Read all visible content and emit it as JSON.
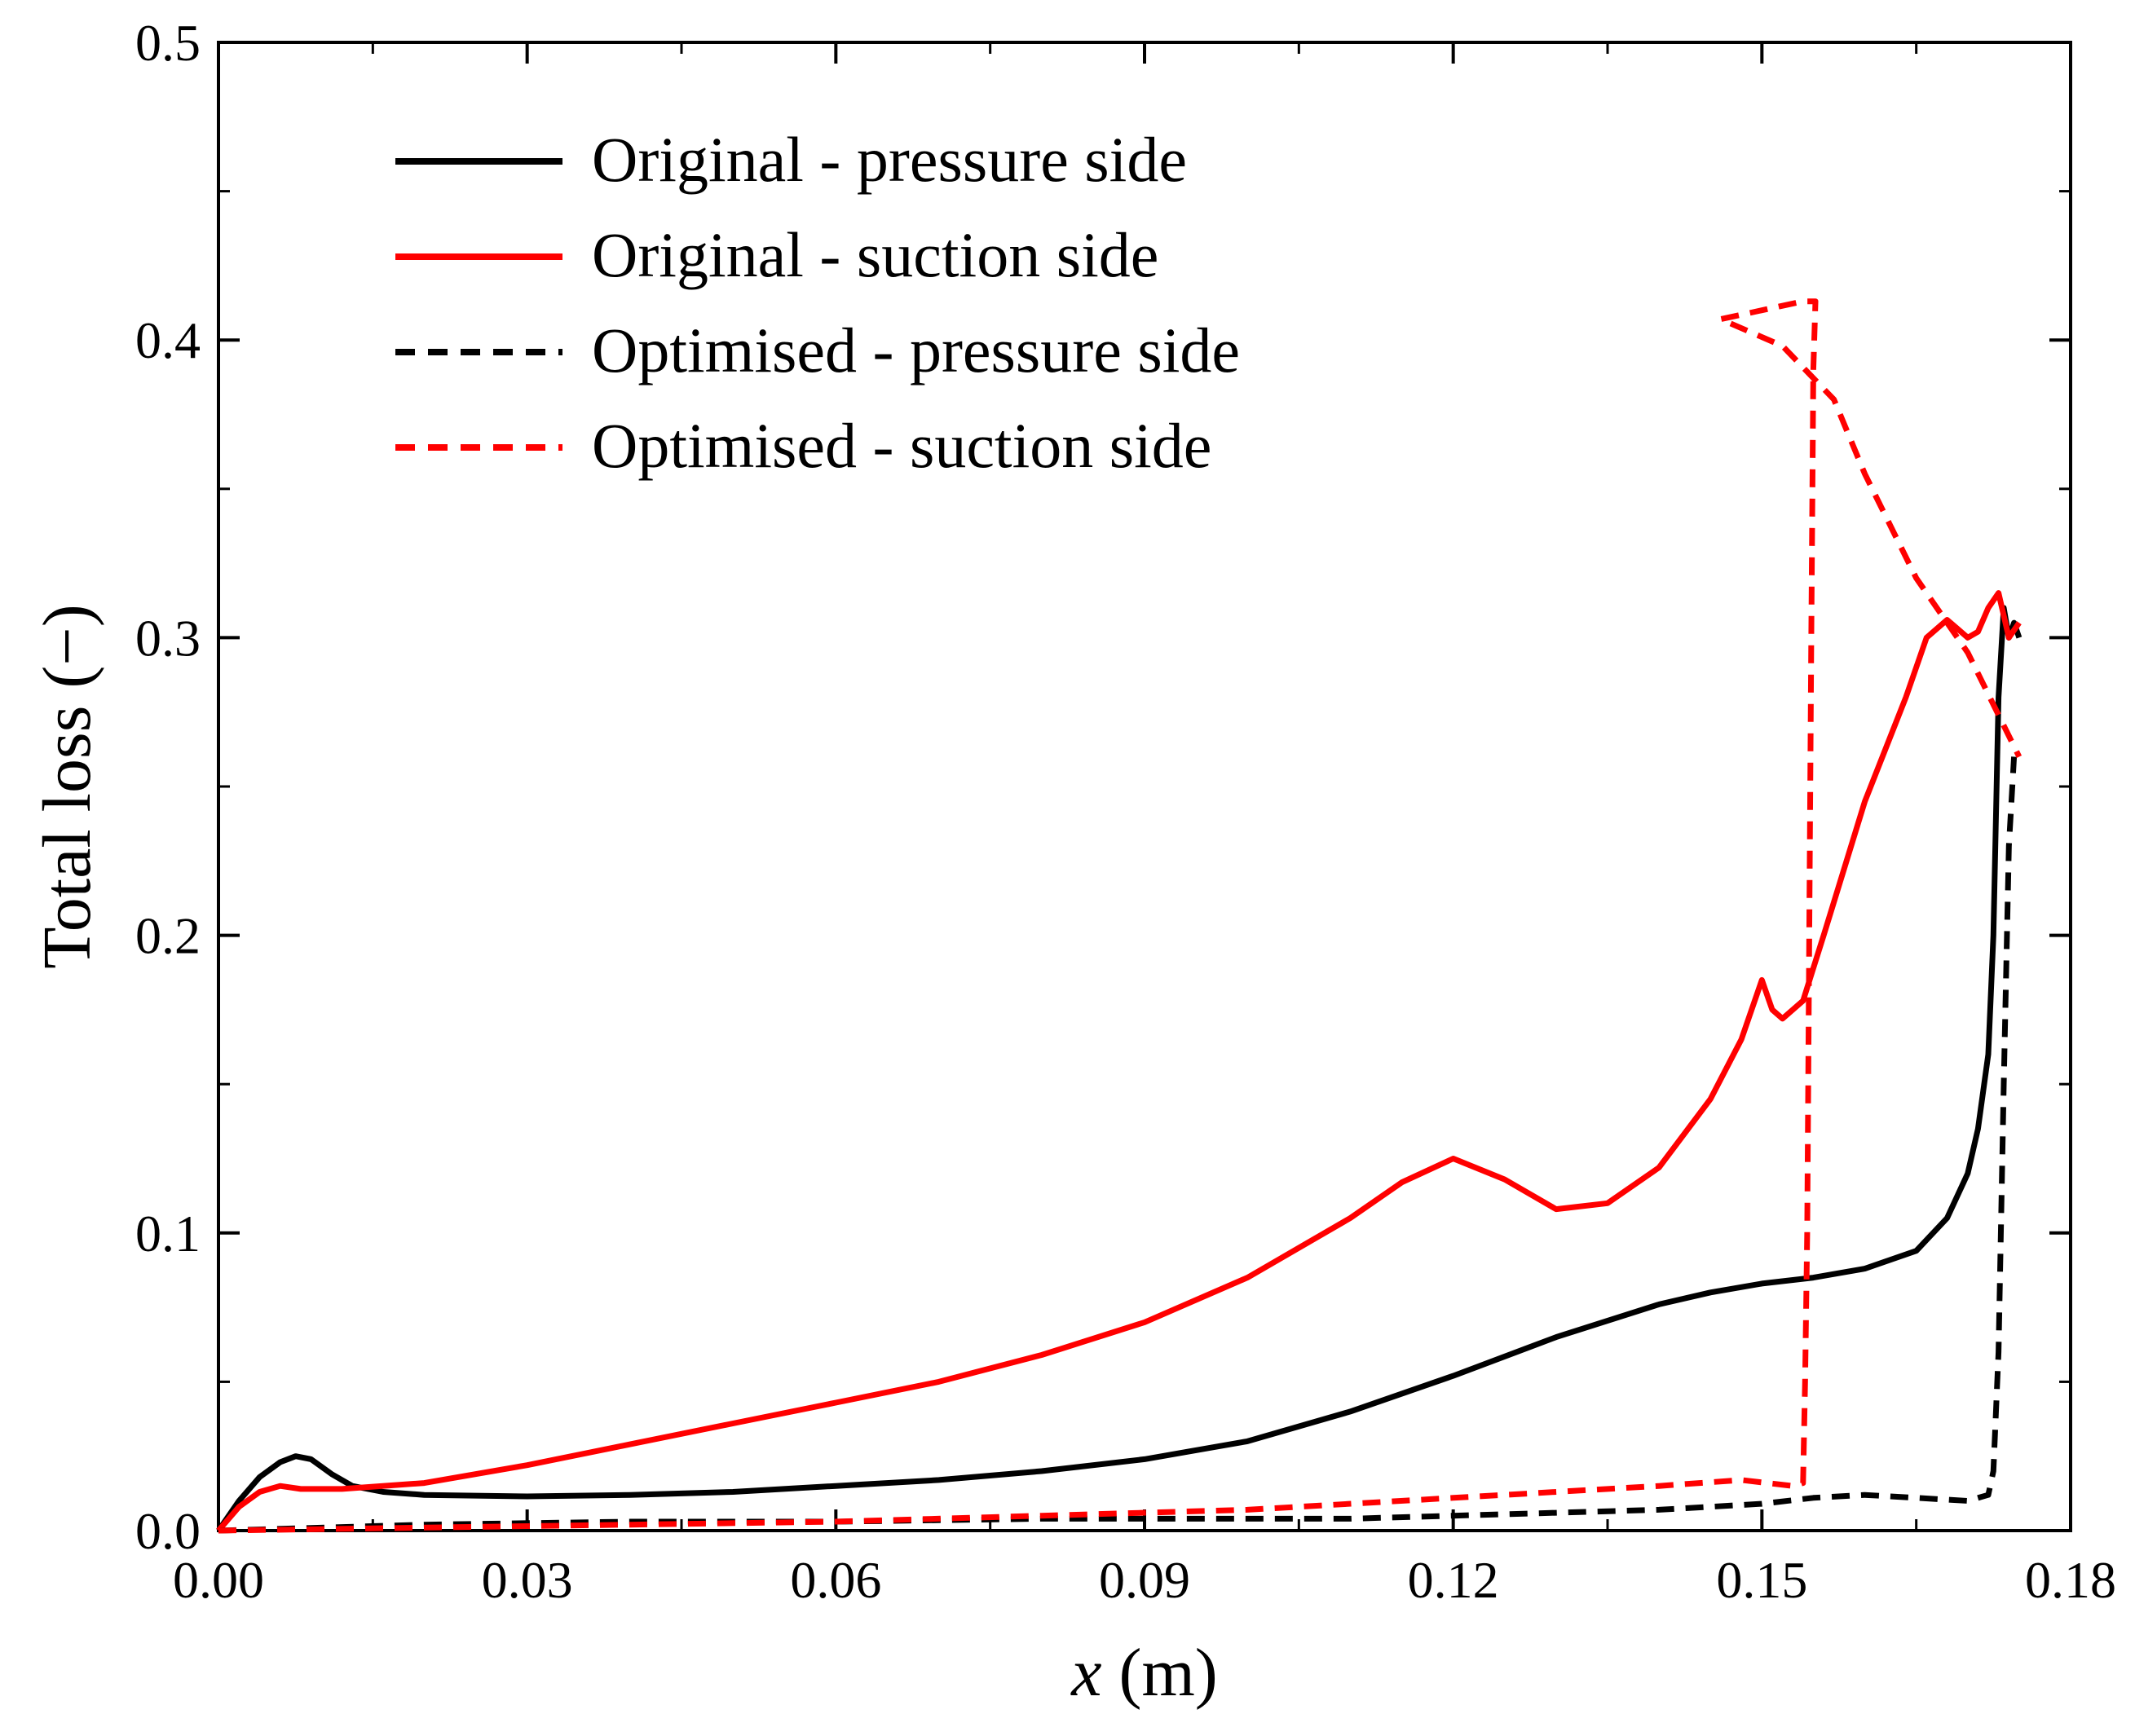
{
  "chart_data": {
    "type": "line",
    "title": "",
    "xlabel_italic": "x",
    "xlabel_unit": " (m)",
    "ylabel": "Total loss (−)",
    "xlim": [
      0,
      0.18
    ],
    "ylim": [
      0,
      0.5
    ],
    "xticks": [
      0.0,
      0.03,
      0.06,
      0.09,
      0.12,
      0.15,
      0.18
    ],
    "xtick_labels": [
      "0.00",
      "0.03",
      "0.06",
      "0.09",
      "0.12",
      "0.15",
      "0.18"
    ],
    "yticks": [
      0.0,
      0.1,
      0.2,
      0.3,
      0.4,
      0.5
    ],
    "ytick_labels": [
      "0.0",
      "0.1",
      "0.2",
      "0.3",
      "0.4",
      "0.5"
    ],
    "grid": false,
    "legend_position": "top-left",
    "series": [
      {
        "name": "Original - pressure side",
        "color": "#000000",
        "dash": "solid",
        "x": [
          0,
          0.002,
          0.004,
          0.006,
          0.0075,
          0.009,
          0.011,
          0.013,
          0.016,
          0.02,
          0.03,
          0.04,
          0.05,
          0.06,
          0.07,
          0.08,
          0.09,
          0.1,
          0.11,
          0.12,
          0.13,
          0.14,
          0.145,
          0.15,
          0.155,
          0.16,
          0.165,
          0.168,
          0.17,
          0.171,
          0.172,
          0.1725,
          0.173,
          0.1735,
          0.174,
          0.1745,
          0.175
        ],
        "y": [
          0.0,
          0.01,
          0.018,
          0.023,
          0.025,
          0.024,
          0.019,
          0.015,
          0.013,
          0.012,
          0.0115,
          0.012,
          0.013,
          0.015,
          0.017,
          0.02,
          0.024,
          0.03,
          0.04,
          0.052,
          0.065,
          0.076,
          0.08,
          0.083,
          0.085,
          0.088,
          0.094,
          0.105,
          0.12,
          0.135,
          0.16,
          0.2,
          0.28,
          0.31,
          0.3,
          0.305,
          0.3
        ]
      },
      {
        "name": "Original - suction side",
        "color": "#ff0000",
        "dash": "solid",
        "x": [
          0,
          0.002,
          0.004,
          0.006,
          0.008,
          0.012,
          0.02,
          0.03,
          0.04,
          0.05,
          0.06,
          0.07,
          0.08,
          0.09,
          0.1,
          0.11,
          0.115,
          0.12,
          0.125,
          0.13,
          0.135,
          0.14,
          0.145,
          0.148,
          0.15,
          0.151,
          0.152,
          0.154,
          0.156,
          0.16,
          0.164,
          0.166,
          0.168,
          0.169,
          0.17,
          0.171,
          0.172,
          0.173,
          0.174,
          0.175
        ],
        "y": [
          0.0,
          0.008,
          0.013,
          0.015,
          0.014,
          0.014,
          0.016,
          0.022,
          0.029,
          0.036,
          0.043,
          0.05,
          0.059,
          0.07,
          0.085,
          0.105,
          0.117,
          0.125,
          0.118,
          0.108,
          0.11,
          0.122,
          0.145,
          0.165,
          0.185,
          0.175,
          0.172,
          0.178,
          0.2,
          0.245,
          0.28,
          0.3,
          0.306,
          0.303,
          0.3,
          0.302,
          0.31,
          0.315,
          0.3,
          0.305
        ]
      },
      {
        "name": "Optimised - pressure side",
        "color": "#000000",
        "dash": "dashed",
        "x": [
          0,
          0.02,
          0.04,
          0.06,
          0.08,
          0.1,
          0.11,
          0.12,
          0.13,
          0.14,
          0.15,
          0.155,
          0.16,
          0.165,
          0.17,
          0.172,
          0.1725,
          0.173,
          0.1735,
          0.174,
          0.1745
        ],
        "y": [
          0.0,
          0.002,
          0.003,
          0.003,
          0.004,
          0.004,
          0.004,
          0.005,
          0.006,
          0.007,
          0.009,
          0.011,
          0.012,
          0.011,
          0.01,
          0.012,
          0.02,
          0.06,
          0.15,
          0.23,
          0.26
        ]
      },
      {
        "name": "Optimised - suction side",
        "color": "#ff0000",
        "dash": "dashed",
        "x": [
          0,
          0.02,
          0.04,
          0.06,
          0.08,
          0.1,
          0.12,
          0.14,
          0.148,
          0.153,
          0.154,
          0.1542,
          0.1544,
          0.1546,
          0.1548,
          0.155,
          0.1552,
          0.154,
          0.15,
          0.146,
          0.152,
          0.157,
          0.16,
          0.165,
          0.17,
          0.175
        ],
        "y": [
          0.0,
          0.001,
          0.002,
          0.003,
          0.005,
          0.007,
          0.011,
          0.015,
          0.017,
          0.015,
          0.016,
          0.05,
          0.1,
          0.2,
          0.3,
          0.39,
          0.413,
          0.413,
          0.41,
          0.407,
          0.398,
          0.38,
          0.355,
          0.32,
          0.295,
          0.26
        ]
      }
    ]
  }
}
